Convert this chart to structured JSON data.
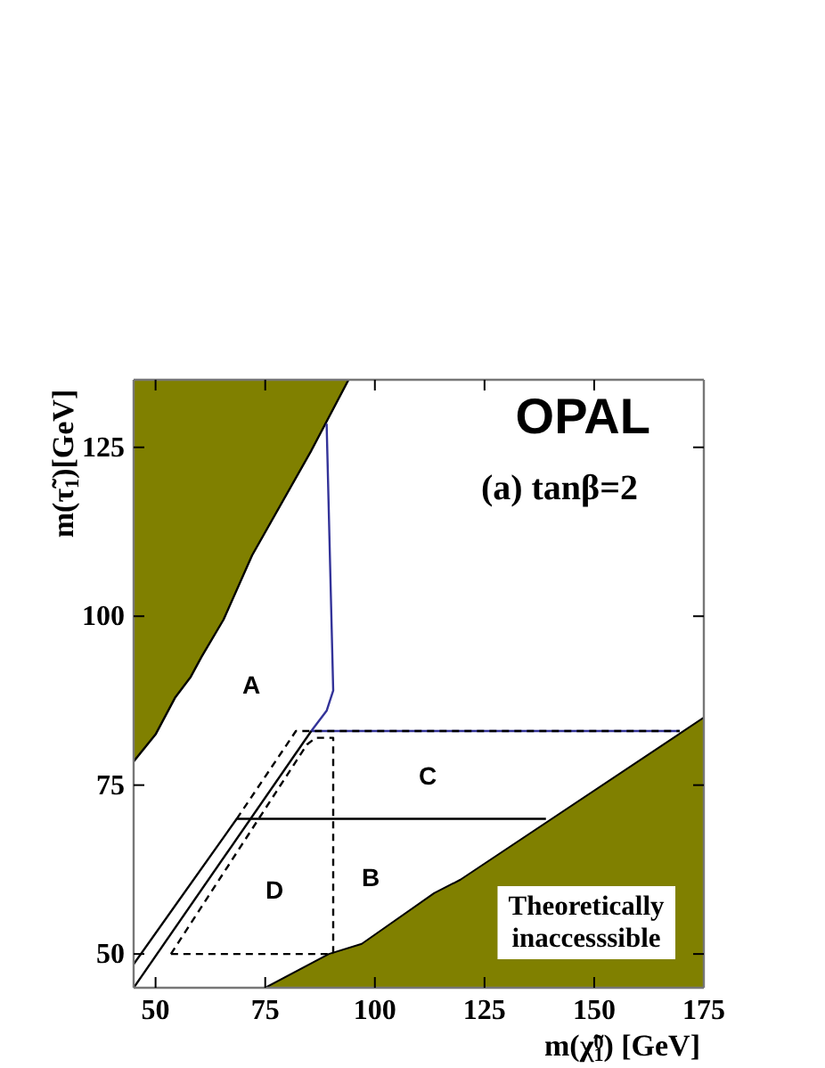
{
  "chart_data": {
    "type": "line",
    "title": "OPAL",
    "subtitle": "(a) tanβ=2",
    "xlabel": "m(χ̃$^{0}$$_{1}$) [GeV]",
    "ylabel": "m(τ̃$_{1}$)[GeV]",
    "xlim": [
      45,
      175
    ],
    "xticks": [
      50,
      75,
      100,
      125,
      150,
      175
    ],
    "ylim": [
      45,
      135
    ],
    "yticks": [
      50,
      75,
      100,
      125
    ],
    "series": [
      {
        "type": "line",
        "color": "#000000",
        "line_style": "solid",
        "x": [
          45,
          50,
          54.5,
          58,
          60.5,
          65.5,
          72,
          85.5,
          94
        ],
        "values": [
          78.5,
          82.5,
          88,
          91,
          94,
          99.5,
          109,
          124.5,
          135
        ]
      },
      {
        "type": "area",
        "color": "#808000",
        "x": [
          75,
          89.5,
          97,
          113.5,
          119.5,
          175
        ],
        "values": [
          45,
          50,
          51.5,
          59,
          61,
          85
        ]
      },
      {
        "type": "line",
        "color": "#333399",
        "line_style": "solid",
        "x": [
          89,
          90.5,
          89,
          85.5,
          169.5
        ],
        "values": [
          128.5,
          89,
          86,
          83,
          83
        ]
      },
      {
        "type": "line",
        "color": "#000000",
        "line_style": "solid",
        "x": [
          45,
          68.5,
          139
        ],
        "values": [
          48.5,
          70,
          70
        ]
      },
      {
        "type": "line",
        "color": "#000000",
        "line_style": "solid",
        "x": [
          45,
          85.5
        ],
        "values": [
          45,
          83
        ]
      },
      {
        "type": "line",
        "color": "#000000",
        "line_style": "dashed",
        "x": [
          68.5,
          82,
          169.5
        ],
        "values": [
          70,
          83,
          83
        ]
      },
      {
        "type": "line",
        "color": "#000000",
        "line_style": "dashed",
        "x": [
          53.5,
          84.5,
          86.5,
          90.5,
          90.5
        ],
        "values": [
          50,
          81,
          82,
          82,
          50
        ]
      },
      {
        "color": "#000000",
        "line_style": "dashed",
        "x": [
          53.5,
          90.5
        ],
        "values": [
          50,
          50
        ]
      }
    ],
    "annotations": [
      "A",
      "B",
      "C",
      "D",
      "Theoretically inaccesssible"
    ]
  }
}
